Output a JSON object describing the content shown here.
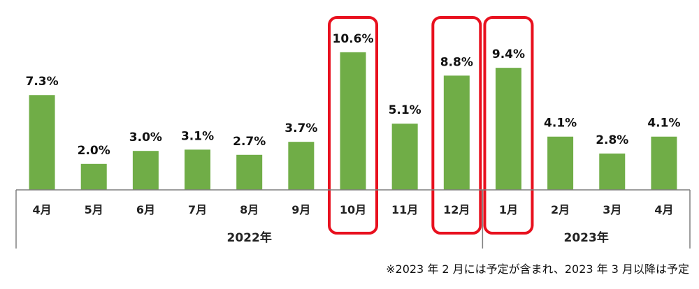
{
  "chart_data": {
    "type": "bar",
    "categories": [
      "4月",
      "5月",
      "6月",
      "7月",
      "8月",
      "9月",
      "10月",
      "11月",
      "12月",
      "1月",
      "2月",
      "3月",
      "4月"
    ],
    "values": [
      7.3,
      2.0,
      3.0,
      3.1,
      2.7,
      3.7,
      10.6,
      5.1,
      8.8,
      9.4,
      4.1,
      2.8,
      4.1
    ],
    "value_labels": [
      "7.3%",
      "2.0%",
      "3.0%",
      "3.1%",
      "2.7%",
      "3.7%",
      "10.6%",
      "5.1%",
      "8.8%",
      "9.4%",
      "4.1%",
      "2.8%",
      "4.1%"
    ],
    "year_groups": [
      {
        "label": "2022年",
        "from": 0,
        "to": 8
      },
      {
        "label": "2023年",
        "from": 9,
        "to": 12
      }
    ],
    "highlighted": [
      6,
      8,
      9
    ],
    "ylim": [
      0,
      12
    ],
    "grid": false,
    "colors": {
      "bar": "#70ad47",
      "highlight": "#e8101e",
      "axis": "#7f7f7f"
    }
  },
  "footnote": "※2023 年 2 月には予定が含まれ、2023 年 3 月以降は予定"
}
